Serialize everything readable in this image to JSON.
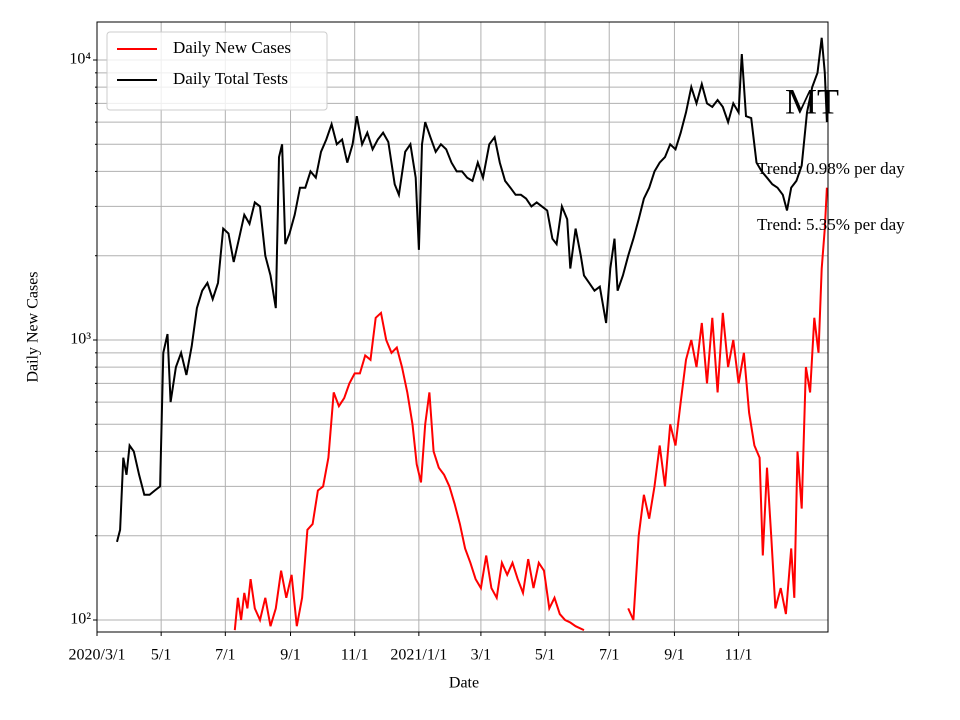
{
  "chart_data": {
    "type": "line",
    "title": "MT",
    "xlabel": "Date",
    "ylabel": "Daily New Cases",
    "annotations": [
      "Trend: 0.98% per day",
      "Trend: 5.35% per day"
    ],
    "log_y": true,
    "grid": true,
    "legend": "upper left",
    "xlim": [
      0,
      695
    ],
    "xticks": [
      {
        "value": 0,
        "label": "2020/3/1"
      },
      {
        "value": 61,
        "label": "5/1"
      },
      {
        "value": 122,
        "label": "7/1"
      },
      {
        "value": 184,
        "label": "9/1"
      },
      {
        "value": 245,
        "label": "11/1"
      },
      {
        "value": 306,
        "label": "2021/1/1"
      },
      {
        "value": 365,
        "label": "3/1"
      },
      {
        "value": 426,
        "label": "5/1"
      },
      {
        "value": 487,
        "label": "7/1"
      },
      {
        "value": 549,
        "label": "9/1"
      },
      {
        "value": 610,
        "label": "11/1"
      }
    ],
    "ylim": [
      90.6,
      13670
    ],
    "yticks": [
      {
        "value": 100,
        "label": "10²"
      },
      {
        "value": 1000,
        "label": "10³"
      },
      {
        "value": 10000,
        "label": "10⁴"
      }
    ],
    "yminorticks": [
      200,
      300,
      400,
      500,
      600,
      700,
      800,
      900,
      2000,
      3000,
      4000,
      5000,
      6000,
      7000,
      8000,
      9000
    ],
    "series": [
      {
        "name": "Daily New Cases",
        "color": "#ff0000",
        "x": [
          131,
          134,
          137,
          140,
          143,
          146,
          150,
          155,
          160,
          165,
          170,
          175,
          180,
          185,
          190,
          195,
          200,
          205,
          210,
          215,
          220,
          225,
          230,
          235,
          240,
          245,
          250,
          255,
          260,
          265,
          270,
          275,
          280,
          285,
          290,
          295,
          300,
          304,
          308,
          312,
          316,
          320,
          325,
          330,
          335,
          340,
          345,
          350,
          355,
          360,
          365,
          370,
          375,
          380,
          385,
          390,
          395,
          400,
          405,
          410,
          415,
          420,
          425,
          430,
          435,
          440,
          445,
          450,
          455,
          463,
          484,
          505,
          510,
          515,
          520,
          525,
          530,
          535,
          540,
          545,
          550,
          555,
          560,
          565,
          570,
          575,
          580,
          585,
          590,
          595,
          600,
          605,
          610,
          615,
          620,
          625,
          630,
          633,
          637,
          641,
          645,
          650,
          655,
          660,
          663,
          666,
          670,
          674,
          678,
          682,
          686,
          689,
          692,
          694
        ],
        "values": [
          92,
          120,
          100,
          125,
          110,
          140,
          110,
          100,
          120,
          95,
          110,
          150,
          120,
          145,
          95,
          120,
          210,
          220,
          290,
          300,
          380,
          650,
          580,
          620,
          700,
          760,
          760,
          880,
          850,
          1200,
          1250,
          1000,
          900,
          940,
          800,
          650,
          500,
          360,
          310,
          500,
          650,
          400,
          350,
          330,
          300,
          260,
          220,
          180,
          160,
          140,
          130,
          170,
          130,
          120,
          160,
          145,
          160,
          140,
          125,
          165,
          130,
          160,
          150,
          110,
          120,
          105,
          100,
          98,
          95,
          92,
          null,
          110,
          100,
          200,
          280,
          230,
          300,
          420,
          300,
          500,
          420,
          600,
          850,
          1000,
          800,
          1150,
          700,
          1200,
          650,
          1250,
          800,
          1000,
          700,
          900,
          550,
          420,
          380,
          170,
          350,
          200,
          110,
          130,
          105,
          180,
          120,
          400,
          250,
          800,
          650,
          1200,
          900,
          1800,
          2500,
          3500
        ]
      },
      {
        "name": "Daily Total Tests",
        "color": "#000000",
        "x": [
          19,
          22,
          25,
          28,
          31,
          35,
          40,
          45,
          50,
          55,
          60,
          63,
          67,
          70,
          75,
          80,
          85,
          90,
          95,
          100,
          105,
          110,
          115,
          120,
          125,
          130,
          135,
          140,
          145,
          150,
          155,
          160,
          165,
          170,
          173,
          176,
          179,
          183,
          188,
          193,
          198,
          203,
          208,
          213,
          218,
          223,
          228,
          233,
          238,
          243,
          247,
          252,
          257,
          262,
          267,
          272,
          277,
          283,
          287,
          293,
          298,
          303,
          306,
          309,
          312,
          317,
          322,
          327,
          332,
          337,
          342,
          347,
          352,
          357,
          362,
          367,
          373,
          378,
          383,
          388,
          393,
          398,
          403,
          408,
          413,
          418,
          423,
          428,
          433,
          437,
          442,
          447,
          450,
          455,
          460,
          463,
          468,
          473,
          478,
          484,
          488,
          492,
          495,
          500,
          505,
          510,
          515,
          520,
          525,
          530,
          535,
          540,
          545,
          550,
          555,
          560,
          565,
          570,
          575,
          580,
          585,
          590,
          595,
          600,
          605,
          610,
          613,
          617,
          622,
          627,
          632,
          637,
          642,
          647,
          652,
          656,
          660,
          665,
          670,
          675,
          680,
          685,
          689,
          692,
          694
        ],
        "values": [
          190,
          210,
          380,
          330,
          420,
          400,
          330,
          280,
          280,
          290,
          300,
          900,
          1050,
          600,
          800,
          900,
          750,
          950,
          1300,
          1500,
          1600,
          1400,
          1600,
          2500,
          2400,
          1900,
          2300,
          2800,
          2600,
          3100,
          3000,
          2000,
          1700,
          1300,
          4500,
          5000,
          2200,
          2400,
          2800,
          3500,
          3500,
          4000,
          3800,
          4700,
          5200,
          5900,
          5000,
          5200,
          4300,
          5000,
          6300,
          5000,
          5500,
          4800,
          5200,
          5500,
          5100,
          3600,
          3300,
          4700,
          5000,
          3800,
          2100,
          5000,
          6000,
          5300,
          4700,
          5000,
          4800,
          4300,
          4000,
          4000,
          3800,
          3700,
          4300,
          3800,
          5000,
          5300,
          4300,
          3700,
          3500,
          3300,
          3300,
          3200,
          3000,
          3100,
          3000,
          2900,
          2300,
          2200,
          3000,
          2700,
          1800,
          2500,
          2000,
          1700,
          1600,
          1500,
          1550,
          1150,
          1800,
          2300,
          1500,
          1700,
          2000,
          2300,
          2700,
          3200,
          3500,
          4000,
          4300,
          4500,
          5000,
          4800,
          5500,
          6500,
          8000,
          7000,
          8200,
          7000,
          6800,
          7200,
          6800,
          6000,
          7000,
          6500,
          10500,
          6300,
          6200,
          4300,
          4000,
          3800,
          3600,
          3500,
          3300,
          2900,
          3500,
          3700,
          4200,
          6500,
          8000,
          9000,
          12000,
          9000,
          6000
        ]
      }
    ]
  }
}
